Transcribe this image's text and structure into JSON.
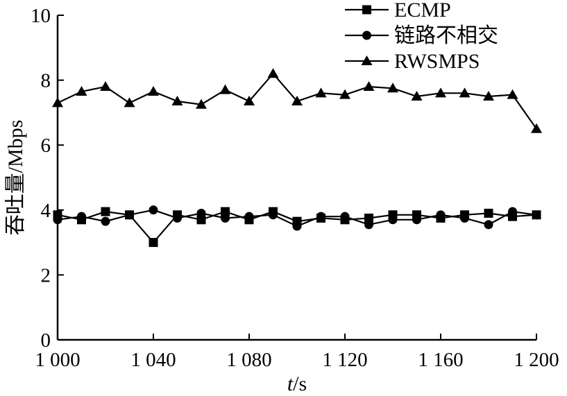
{
  "chart_data": {
    "type": "line",
    "xlabel_italic": "t",
    "xlabel_unit": "/s",
    "ylabel": "吞吐量/Mbps",
    "xlim": [
      1000,
      1200
    ],
    "ylim": [
      0,
      10
    ],
    "x_ticks": [
      1000,
      1040,
      1080,
      1120,
      1160,
      1200
    ],
    "x_tick_labels": [
      "1 000",
      "1 040",
      "1 080",
      "1 120",
      "1 160",
      "1 200"
    ],
    "y_ticks": [
      0,
      2,
      4,
      6,
      8,
      10
    ],
    "y_tick_labels": [
      "0",
      "2",
      "4",
      "6",
      "8",
      "10"
    ],
    "grid": false,
    "legend_position": "top-right",
    "x": [
      1000,
      1010,
      1020,
      1030,
      1040,
      1050,
      1060,
      1070,
      1080,
      1090,
      1100,
      1110,
      1120,
      1130,
      1140,
      1150,
      1160,
      1170,
      1180,
      1190,
      1200
    ],
    "series": [
      {
        "name": "ECMP",
        "marker": "square",
        "values": [
          3.85,
          3.7,
          3.95,
          3.85,
          3.0,
          3.85,
          3.7,
          3.95,
          3.7,
          3.95,
          3.65,
          3.75,
          3.7,
          3.75,
          3.85,
          3.85,
          3.75,
          3.85,
          3.9,
          3.8,
          3.85
        ]
      },
      {
        "name": "链路不相交",
        "marker": "circle",
        "values": [
          3.7,
          3.8,
          3.65,
          3.85,
          4.0,
          3.75,
          3.9,
          3.75,
          3.8,
          3.85,
          3.5,
          3.8,
          3.8,
          3.55,
          3.7,
          3.7,
          3.85,
          3.75,
          3.55,
          3.95,
          3.85
        ]
      },
      {
        "name": "RWSMPS",
        "marker": "triangle",
        "values": [
          7.3,
          7.65,
          7.8,
          7.3,
          7.65,
          7.35,
          7.25,
          7.7,
          7.35,
          8.2,
          7.35,
          7.6,
          7.55,
          7.8,
          7.75,
          7.5,
          7.6,
          7.6,
          7.5,
          7.55,
          6.5
        ]
      }
    ]
  }
}
